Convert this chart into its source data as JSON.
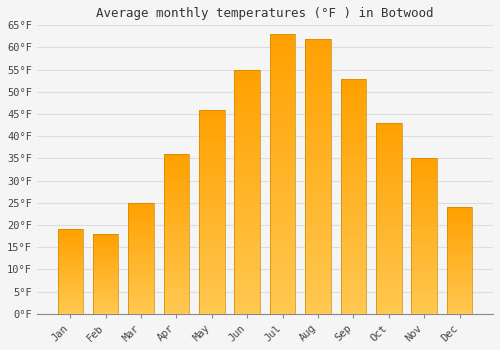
{
  "title": "Average monthly temperatures (°F ) in Botwood",
  "months": [
    "Jan",
    "Feb",
    "Mar",
    "Apr",
    "May",
    "Jun",
    "Jul",
    "Aug",
    "Sep",
    "Oct",
    "Nov",
    "Dec"
  ],
  "values": [
    19,
    18,
    25,
    36,
    46,
    55,
    63,
    62,
    53,
    43,
    35,
    24
  ],
  "bar_color_top": "#FFA500",
  "bar_color_bottom": "#FFD070",
  "bar_edge_color": "#CC8800",
  "ylim": [
    0,
    65
  ],
  "yticks": [
    0,
    5,
    10,
    15,
    20,
    25,
    30,
    35,
    40,
    45,
    50,
    55,
    60,
    65
  ],
  "ylabel_suffix": "°F",
  "background_color": "#f5f5f5",
  "plot_bg_color": "#f5f5f5",
  "grid_color": "#dddddd",
  "title_fontsize": 9,
  "tick_fontsize": 7.5,
  "figsize": [
    5.0,
    3.5
  ],
  "dpi": 100
}
